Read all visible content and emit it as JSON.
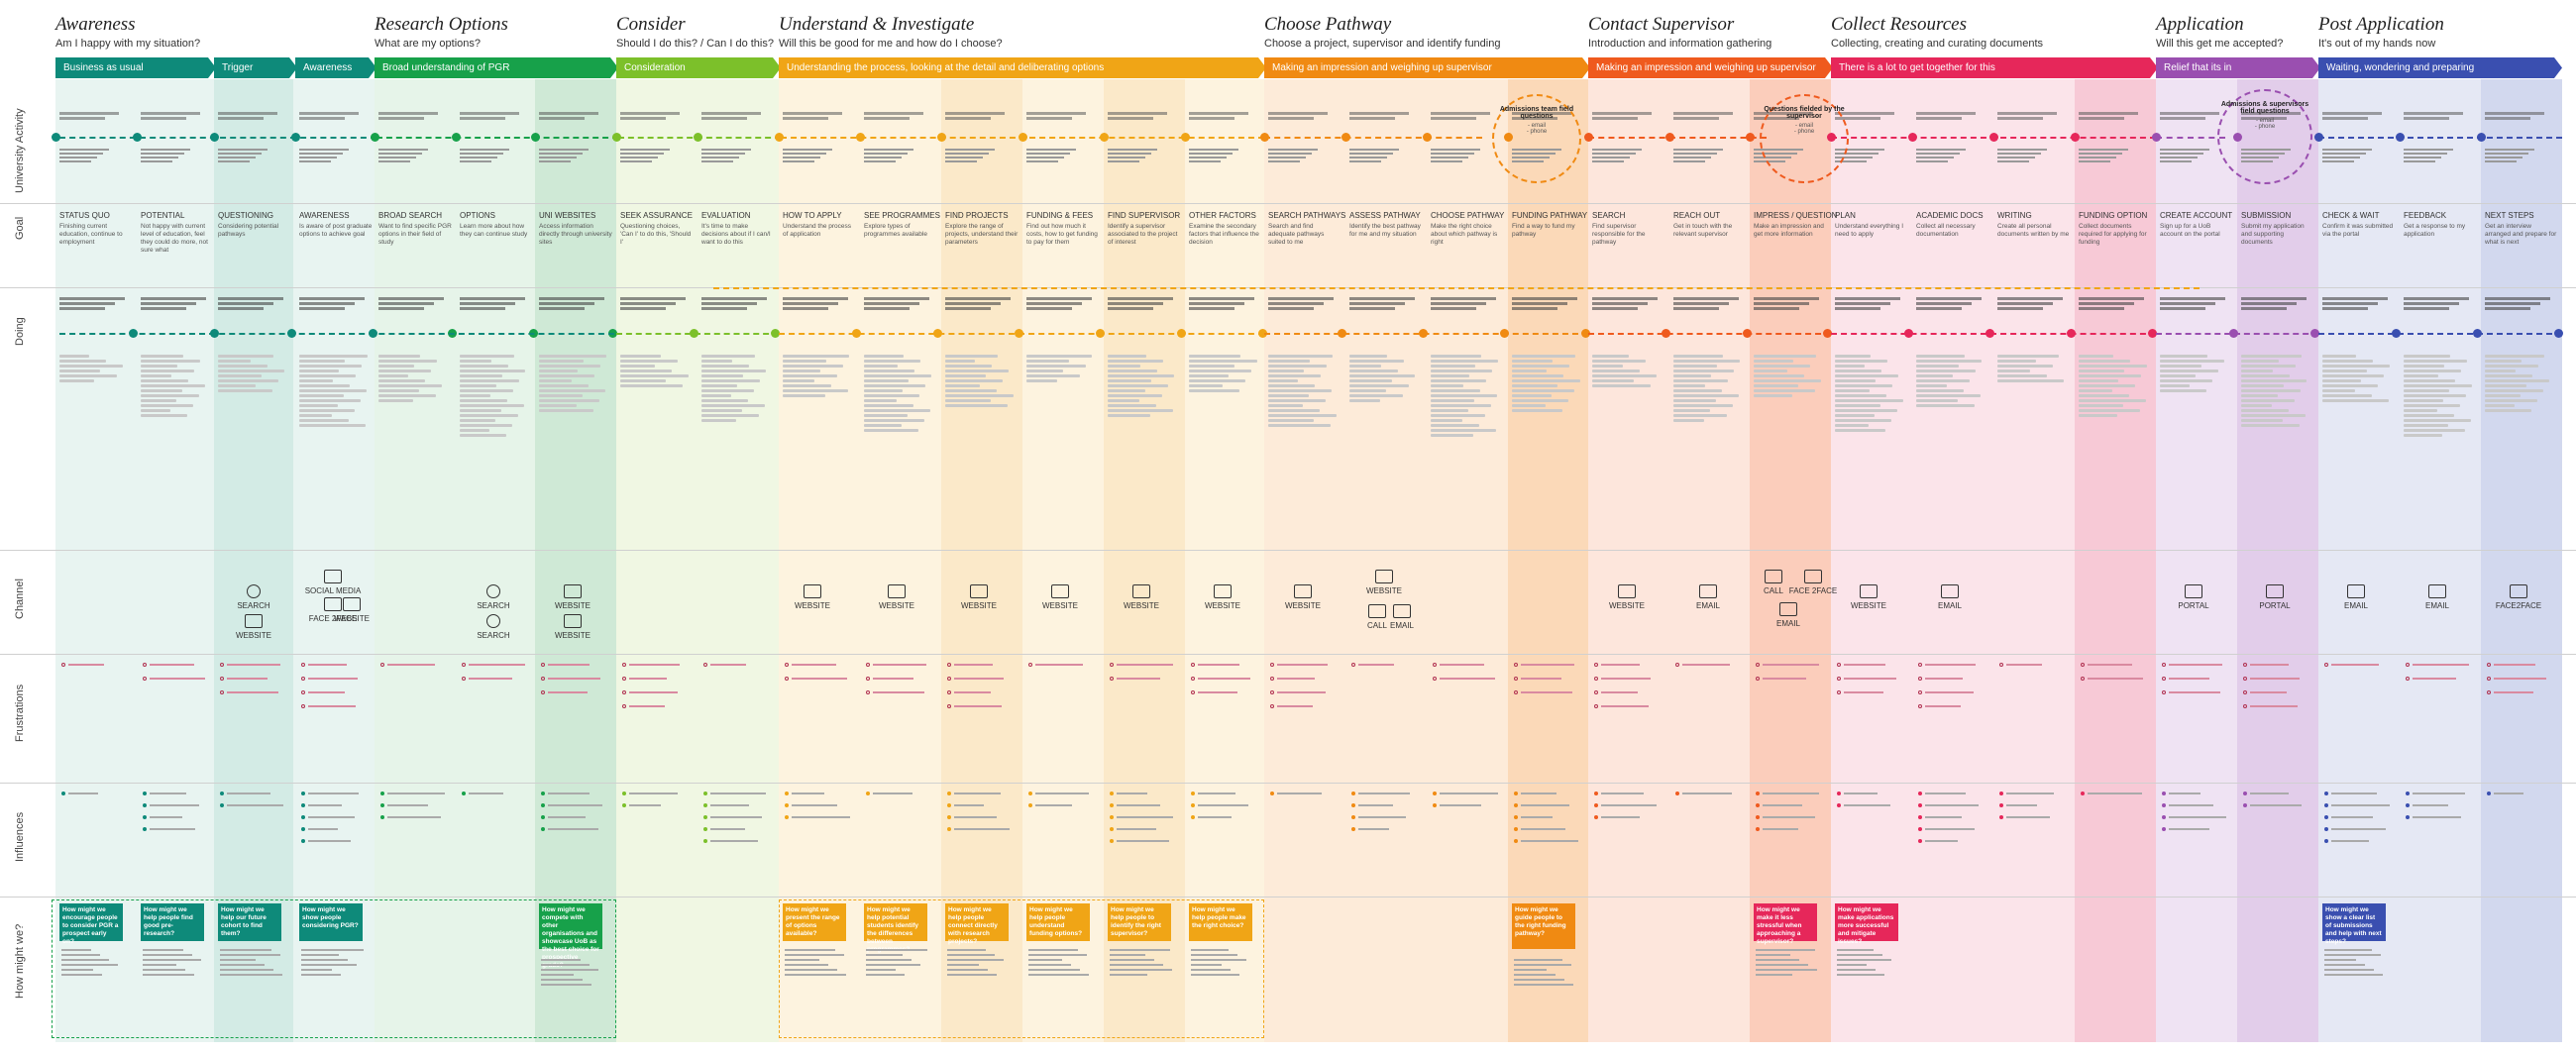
{
  "phases": [
    {
      "title": "Awareness",
      "subtitle": "Am I happy with my situation?"
    },
    {
      "title": "Research Options",
      "subtitle": "What are my options?"
    },
    {
      "title": "Consider",
      "subtitle": "Should I do this? / Can I do this?"
    },
    {
      "title": "Understand & Investigate",
      "subtitle": "Will this be good for me and how do I choose?"
    },
    {
      "title": "Choose Pathway",
      "subtitle": "Choose a project, supervisor and identify funding"
    },
    {
      "title": "Contact Supervisor",
      "subtitle": "Introduction and information gathering"
    },
    {
      "title": "Collect Resources",
      "subtitle": "Collecting, creating and curating documents"
    },
    {
      "title": "Application",
      "subtitle": "Will this get me accepted?"
    },
    {
      "title": "Post Application",
      "subtitle": "It's out of my hands now"
    }
  ],
  "bands": [
    {
      "label": "Business as usual",
      "color": "#0e8a7a"
    },
    {
      "label": "Trigger",
      "color": "#0e8a7a"
    },
    {
      "label": "Awareness",
      "color": "#0e8a7a"
    },
    {
      "label": "Broad understanding of PGR",
      "color": "#17a14a"
    },
    {
      "label": "Consideration",
      "color": "#7cc02a"
    },
    {
      "label": "Understanding the process, looking at the detail and deliberating options",
      "color": "#f0a516"
    },
    {
      "label": "Making an impression and weighing up supervisor",
      "color": "#f08a12"
    },
    {
      "label": "Making an impression and weighing up supervisor",
      "color": "#ef5a1e"
    },
    {
      "label": "There is a lot to get together for this",
      "color": "#e6275a"
    },
    {
      "label": "Relief that its in",
      "color": "#9a4fb0"
    },
    {
      "label": "Waiting, wondering and preparing",
      "color": "#3a4fb0"
    }
  ],
  "row_labels": [
    "University Activity",
    "Goal",
    "Doing",
    "Channel",
    "Frustrations",
    "Influences",
    "How might we?"
  ],
  "stages": [
    {
      "label": "STATUS QUO",
      "goal": "Finishing current education, continue to employment"
    },
    {
      "label": "POTENTIAL",
      "goal": "Not happy with current level of education, feel they could do more, not sure what"
    },
    {
      "label": "QUESTIONING",
      "goal": "Considering potential pathways"
    },
    {
      "label": "AWARENESS",
      "goal": "Is aware of post graduate options to achieve goal"
    },
    {
      "label": "BROAD SEARCH",
      "goal": "Want to find specific PGR options in their field of study"
    },
    {
      "label": "OPTIONS",
      "goal": "Learn more about how they can continue study"
    },
    {
      "label": "UNI WEBSITES",
      "goal": "Access information directly through university sites"
    },
    {
      "label": "SEEK ASSURANCE",
      "goal": "Questioning choices, 'Can I' to do this, 'Should I'"
    },
    {
      "label": "EVALUATION",
      "goal": "It's time to make decisions about if I can/I want to do this"
    },
    {
      "label": "HOW TO APPLY",
      "goal": "Understand the process of application"
    },
    {
      "label": "SEE PROGRAMMES",
      "goal": "Explore types of programmes available"
    },
    {
      "label": "FIND PROJECTS",
      "goal": "Explore the range of projects, understand their parameters"
    },
    {
      "label": "FUNDING & FEES",
      "goal": "Find out how much it costs, how to get funding to pay for them"
    },
    {
      "label": "FIND SUPERVISOR",
      "goal": "Identify a supervisor associated to the project of interest"
    },
    {
      "label": "OTHER FACTORS",
      "goal": "Examine the secondary factors that influence the decision"
    },
    {
      "label": "SEARCH PATHWAYS",
      "goal": "Search and find adequate pathways suited to me"
    },
    {
      "label": "ASSESS PATHWAY",
      "goal": "Identify the best pathway for me and my situation"
    },
    {
      "label": "CHOOSE PATHWAY",
      "goal": "Make the right choice about which pathway is right"
    },
    {
      "label": "FUNDING PATHWAY",
      "goal": "Find a way to fund my pathway"
    },
    {
      "label": "SEARCH",
      "goal": "Find supervisor responsible for the pathway"
    },
    {
      "label": "REACH OUT",
      "goal": "Get in touch with the relevant supervisor"
    },
    {
      "label": "IMPRESS / QUESTION",
      "goal": "Make an impression and get more information"
    },
    {
      "label": "PLAN",
      "goal": "Understand everything I need to apply"
    },
    {
      "label": "ACADEMIC DOCS",
      "goal": "Collect all necessary documentation"
    },
    {
      "label": "WRITING",
      "goal": "Create all personal documents written by me"
    },
    {
      "label": "FUNDING OPTION",
      "goal": "Collect documents required for applying for funding"
    },
    {
      "label": "CREATE ACCOUNT",
      "goal": "Sign up for a UoB account on the portal"
    },
    {
      "label": "SUBMISSION",
      "goal": "Submit my application and supporting documents"
    },
    {
      "label": "CHECK & WAIT",
      "goal": "Confirm it was submitted via the portal"
    },
    {
      "label": "FEEDBACK",
      "goal": "Get a response to my application"
    },
    {
      "label": "NEXT STEPS",
      "goal": "Get an interview arranged and prepare for what is next"
    }
  ],
  "channels": [
    {
      "label": "SEARCH"
    },
    {
      "label": "WEBSITE"
    },
    {
      "label": "SOCIAL MEDIA"
    },
    {
      "label": "FACE 2FACE"
    },
    {
      "label": "WEBSITE"
    },
    {
      "label": "SEARCH"
    },
    {
      "label": "SEARCH"
    },
    {
      "label": "WEBSITE"
    },
    {
      "label": "WEBSITE"
    },
    {
      "label": "WEBSITE"
    },
    {
      "label": "WEBSITE"
    },
    {
      "label": "WEBSITE"
    },
    {
      "label": "WEBSITE"
    },
    {
      "label": "WEBSITE"
    },
    {
      "label": "WEBSITE"
    },
    {
      "label": "WEBSITE"
    },
    {
      "label": "WEBSITE"
    },
    {
      "label": "CALL"
    },
    {
      "label": "EMAIL"
    },
    {
      "label": "WEBSITE"
    },
    {
      "label": "EMAIL"
    },
    {
      "label": "CALL"
    },
    {
      "label": "FACE 2FACE"
    },
    {
      "label": "EMAIL"
    },
    {
      "label": "WEBSITE"
    },
    {
      "label": "EMAIL"
    },
    {
      "label": "PORTAL"
    },
    {
      "label": "PORTAL"
    },
    {
      "label": "EMAIL"
    },
    {
      "label": "EMAIL"
    },
    {
      "label": "FACE2FACE"
    }
  ],
  "bubbles": [
    {
      "title": "Admissions team field questions",
      "items": "- email\n- phone"
    },
    {
      "title": "Questions fielded by the supervisor",
      "items": "- email\n- phone"
    },
    {
      "title": "Admissions & supervisors field questions",
      "items": "- email\n- phone"
    }
  ],
  "hmw": [
    {
      "text": "How might we encourage people to consider PGR a prospect early on?"
    },
    {
      "text": "How might we help people find good pre-research?"
    },
    {
      "text": "How might we help our future cohort to find them?"
    },
    {
      "text": "How might we show people considering PGR?"
    },
    {
      "text": "How might we compete with other organisations and showcase UoB as the best choice for prospective grads?"
    },
    {
      "text": "How might we present the range of options available?"
    },
    {
      "text": "How might we help potential students identify the differences between programmes?"
    },
    {
      "text": "How might we help people connect directly with research projects?"
    },
    {
      "text": "How might we help people understand funding options?"
    },
    {
      "text": "How might we help people to identify the right supervisor?"
    },
    {
      "text": "How might we help people make the right choice?"
    },
    {
      "text": "How might we guide people to the right funding pathway?"
    },
    {
      "text": "How might we make it less stressful when approaching a supervisor?"
    },
    {
      "text": "How might we make applications more successful and mitigate issues?"
    },
    {
      "text": "How might we show a clear list of submissions and help with next steps?"
    }
  ],
  "palette": {
    "teal": "#0e8a7a",
    "green": "#17a14a",
    "lime": "#7cc02a",
    "amber": "#f0a516",
    "orange": "#f08a12",
    "redorange": "#ef5a1e",
    "pink": "#e6275a",
    "purple": "#9a4fb0",
    "blue": "#3a4fb0"
  }
}
